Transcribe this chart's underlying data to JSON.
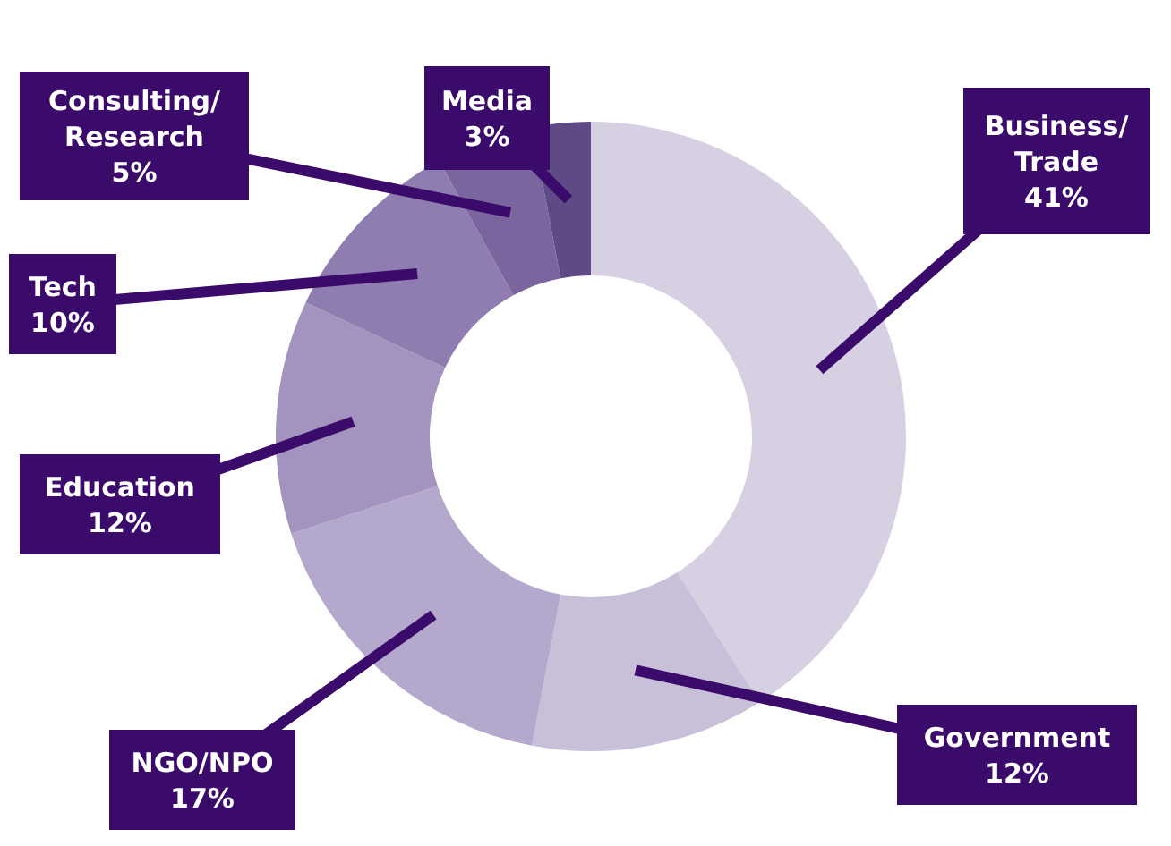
{
  "chart_data": {
    "type": "donut",
    "categories": [
      "Business/Trade",
      "Government",
      "NGO/NPO",
      "Education",
      "Tech",
      "Consulting/Research",
      "Media"
    ],
    "values": [
      41,
      12,
      17,
      12,
      10,
      5,
      3
    ],
    "value_labels": [
      "41%",
      "12%",
      "17%",
      "12%",
      "10%",
      "5%",
      "3%"
    ],
    "colors": [
      "#d6d0e2",
      "#c8c0d9",
      "#b4a9cc",
      "#a294be",
      "#8f7cb0",
      "#7b659f",
      "#5f4a86"
    ]
  }
}
